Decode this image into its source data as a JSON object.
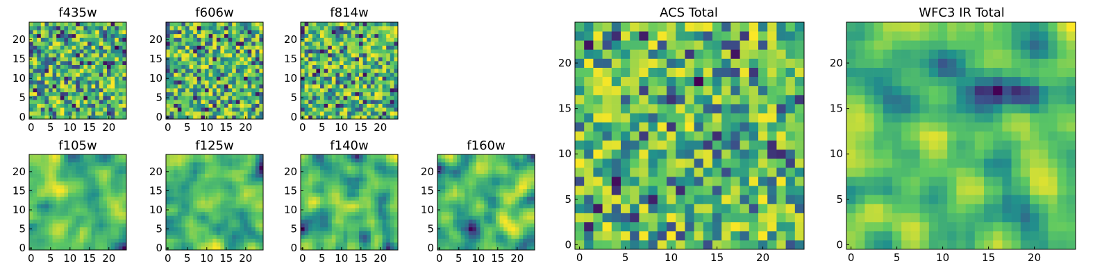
{
  "chart_data": [
    {
      "type": "heatmap",
      "title": "f435w",
      "grid_size": 25,
      "xticks": [
        0,
        5,
        10,
        15,
        20
      ],
      "yticks": [
        0,
        5,
        10,
        15,
        20
      ],
      "xlim": [
        0,
        25
      ],
      "ylim": [
        0,
        25
      ],
      "texture": "noise",
      "seed": 11
    },
    {
      "type": "heatmap",
      "title": "f606w",
      "grid_size": 25,
      "xticks": [
        0,
        5,
        10,
        15,
        20
      ],
      "yticks": [
        0,
        5,
        10,
        15,
        20
      ],
      "xlim": [
        0,
        25
      ],
      "ylim": [
        0,
        25
      ],
      "texture": "noise",
      "seed": 23
    },
    {
      "type": "heatmap",
      "title": "f814w",
      "grid_size": 25,
      "xticks": [
        0,
        5,
        10,
        15,
        20
      ],
      "yticks": [
        0,
        5,
        10,
        15,
        20
      ],
      "xlim": [
        0,
        25
      ],
      "ylim": [
        0,
        25
      ],
      "texture": "noise",
      "seed": 37
    },
    {
      "type": "heatmap",
      "title": "f105w",
      "grid_size": 25,
      "xticks": [
        0,
        5,
        10,
        15,
        20
      ],
      "yticks": [
        0,
        5,
        10,
        15,
        20
      ],
      "xlim": [
        0,
        25
      ],
      "ylim": [
        0,
        25
      ],
      "texture": "smooth",
      "seed": 41
    },
    {
      "type": "heatmap",
      "title": "f125w",
      "grid_size": 25,
      "xticks": [
        0,
        5,
        10,
        15,
        20
      ],
      "yticks": [
        0,
        5,
        10,
        15,
        20
      ],
      "xlim": [
        0,
        25
      ],
      "ylim": [
        0,
        25
      ],
      "texture": "smooth",
      "seed": 53
    },
    {
      "type": "heatmap",
      "title": "f140w",
      "grid_size": 25,
      "xticks": [
        0,
        5,
        10,
        15,
        20
      ],
      "yticks": [
        0,
        5,
        10,
        15,
        20
      ],
      "xlim": [
        0,
        25
      ],
      "ylim": [
        0,
        25
      ],
      "texture": "smooth",
      "seed": 67
    },
    {
      "type": "heatmap",
      "title": "f160w",
      "grid_size": 25,
      "xticks": [
        0,
        5,
        10,
        15,
        20
      ],
      "yticks": [
        0,
        5,
        10,
        15,
        20
      ],
      "xlim": [
        0,
        25
      ],
      "ylim": [
        0,
        25
      ],
      "texture": "smooth",
      "seed": 79
    },
    {
      "type": "heatmap",
      "title": "ACS Total",
      "grid_size": 25,
      "xticks": [
        0,
        5,
        10,
        15,
        20
      ],
      "yticks": [
        0,
        5,
        10,
        15,
        20
      ],
      "xlim": [
        0,
        25
      ],
      "ylim": [
        0,
        25
      ],
      "texture": "noise",
      "seed": 83
    },
    {
      "type": "heatmap",
      "title": "WFC3 IR Total",
      "grid_size": 25,
      "xticks": [
        0,
        5,
        10,
        15,
        20
      ],
      "yticks": [
        0,
        5,
        10,
        15,
        20
      ],
      "xlim": [
        0,
        25
      ],
      "ylim": [
        0,
        25
      ],
      "texture": "smooth",
      "seed": 97
    }
  ],
  "colormap": [
    "#440154",
    "#3b528b",
    "#21918c",
    "#5ec962",
    "#fde725"
  ]
}
